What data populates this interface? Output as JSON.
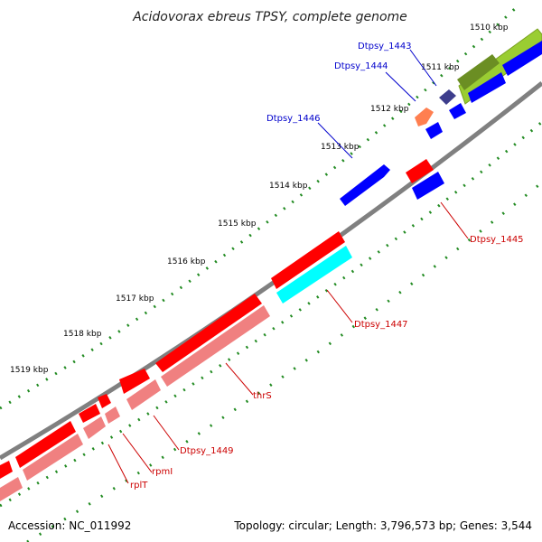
{
  "title": "Acidovorax ebreus TPSY, complete genome",
  "footer": {
    "accession": "Accession: NC_011992",
    "summary": "Topology: circular; Length: 3,796,573 bp; Genes: 3,544"
  },
  "ticks": [
    "1510 kbp",
    "1511 kbp",
    "1512 kbp",
    "1513 kbp",
    "1514 kbp",
    "1515 kbp",
    "1516 kbp",
    "1517 kbp",
    "1518 kbp",
    "1519 kbp"
  ],
  "gene_labels": [
    {
      "name": "Dtpsy_1443",
      "color": "#0000cc"
    },
    {
      "name": "Dtpsy_1444",
      "color": "#0000cc"
    },
    {
      "name": "Dtpsy_1446",
      "color": "#0000cc"
    },
    {
      "name": "Dtpsy_1445",
      "color": "#cc0000"
    },
    {
      "name": "Dtpsy_1447",
      "color": "#cc0000"
    },
    {
      "name": "thrS",
      "color": "#cc0000"
    },
    {
      "name": "Dtpsy_1449",
      "color": "#cc0000"
    },
    {
      "name": "rpmI",
      "color": "#cc0000"
    },
    {
      "name": "rplT",
      "color": "#cc0000"
    }
  ],
  "colors": {
    "backbone": "#808080",
    "forward_cds": "#ff0000",
    "forward_gene": "#f08080",
    "reverse_cds": "#0000ff",
    "reverse_gene": "#3d3d8c",
    "cyan_feature": "#00ffff",
    "salmon_feature": "#ff7f50",
    "lime_feature": "#9acd32",
    "olive_feature": "#6b8e23",
    "tick_marks": "#228b22"
  }
}
